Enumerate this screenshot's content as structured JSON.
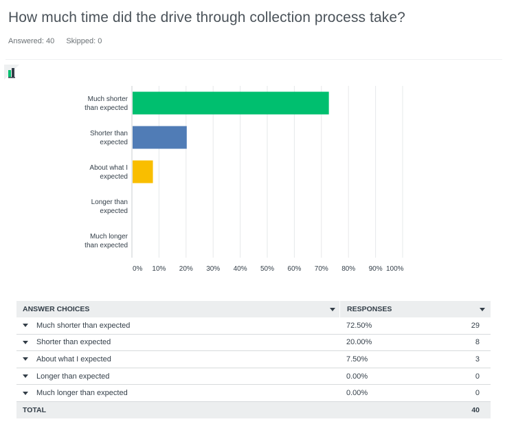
{
  "question": {
    "title": "How much time did the drive through collection process take?",
    "answered": "Answered: 40",
    "skipped": "Skipped: 0"
  },
  "chart_data": {
    "type": "bar",
    "orientation": "horizontal",
    "categories": [
      [
        "Much shorter",
        "than expected"
      ],
      [
        "Shorter than",
        "expected"
      ],
      [
        "About what I",
        "expected"
      ],
      [
        "Longer than",
        "expected"
      ],
      [
        "Much longer",
        "than expected"
      ]
    ],
    "values": [
      72.5,
      20.0,
      7.5,
      0.0,
      0.0
    ],
    "colors": [
      "#00bf6f",
      "#507cb6",
      "#f9be00",
      "#6bc8cd",
      "#ff8b4f"
    ],
    "xlim": [
      0,
      100
    ],
    "x_ticks": [
      "0%",
      "10%",
      "20%",
      "30%",
      "40%",
      "50%",
      "60%",
      "70%",
      "80%",
      "90%",
      "100%"
    ],
    "grid": true
  },
  "table": {
    "header_choices": "ANSWER CHOICES",
    "header_responses": "RESPONSES",
    "rows": [
      {
        "choice": "Much shorter than expected",
        "pct": "72.50%",
        "count": "29"
      },
      {
        "choice": "Shorter than expected",
        "pct": "20.00%",
        "count": "8"
      },
      {
        "choice": "About what I expected",
        "pct": "7.50%",
        "count": "3"
      },
      {
        "choice": "Longer than expected",
        "pct": "0.00%",
        "count": "0"
      },
      {
        "choice": "Much longer than expected",
        "pct": "0.00%",
        "count": "0"
      }
    ],
    "total_label": "TOTAL",
    "total_value": "40"
  },
  "icons": {
    "chart_toggle": "bar-chart-icon",
    "sort": "sort-arrow-icon",
    "expand": "expand-arrow-icon"
  }
}
